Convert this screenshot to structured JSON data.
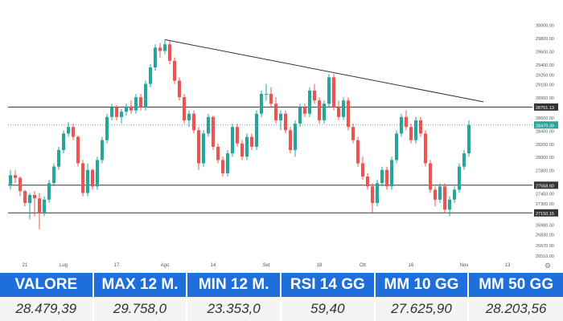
{
  "chart_data": {
    "type": "candlestick",
    "ylim": [
      26510,
      30200
    ],
    "y_ticks": [
      {
        "value": 30000,
        "label": "30000.00"
      },
      {
        "value": 29800,
        "label": "29800.00"
      },
      {
        "value": 29600,
        "label": "29600.00"
      },
      {
        "value": 29400,
        "label": "29400.00"
      },
      {
        "value": 29250,
        "label": "29250.00"
      },
      {
        "value": 29100,
        "label": "29100.00"
      },
      {
        "value": 28900,
        "label": "28900.00"
      },
      {
        "value": 28600,
        "label": "28600.00"
      },
      {
        "value": 28400,
        "label": "28400.00"
      },
      {
        "value": 28200,
        "label": "28200.00"
      },
      {
        "value": 28000,
        "label": "28000.00"
      },
      {
        "value": 27800,
        "label": "27800.00"
      },
      {
        "value": 27450,
        "label": "27450.00"
      },
      {
        "value": 27300,
        "label": "27300.00"
      },
      {
        "value": 26980,
        "label": "26980.00"
      },
      {
        "value": 26830,
        "label": "26830.00"
      },
      {
        "value": 26670,
        "label": "26670.00"
      },
      {
        "value": 26510,
        "label": "26510.00"
      }
    ],
    "x_ticks": [
      {
        "index": 3,
        "label": "21"
      },
      {
        "index": 11,
        "label": "Lug"
      },
      {
        "index": 22,
        "label": "17"
      },
      {
        "index": 32,
        "label": "Ago"
      },
      {
        "index": 42,
        "label": "14"
      },
      {
        "index": 53,
        "label": "Set"
      },
      {
        "index": 64,
        "label": "18"
      },
      {
        "index": 73,
        "label": "Ott"
      },
      {
        "index": 83,
        "label": "16"
      },
      {
        "index": 94,
        "label": "Nov"
      },
      {
        "index": 103,
        "label": "13"
      }
    ],
    "horizontal_levels": [
      {
        "value": 28751.13,
        "label": "28751.13",
        "color": "#333333"
      },
      {
        "value": 27568.6,
        "label": "27568.60",
        "color": "#333333"
      },
      {
        "value": 27150.15,
        "label": "27150.15",
        "color": "#333333"
      }
    ],
    "last_price": {
      "value": 28479.39,
      "label": "28479.39",
      "color": "#26a69a"
    },
    "trendline": {
      "start": {
        "index": 32,
        "value": 29770
      },
      "end": {
        "index": 98,
        "value": 28830
      }
    },
    "up_color": "#26a69a",
    "down_color": "#ef5350",
    "candles": [
      {
        "o": 27580,
        "h": 27800,
        "l": 27500,
        "c": 27720
      },
      {
        "o": 27720,
        "h": 27800,
        "l": 27600,
        "c": 27680
      },
      {
        "o": 27680,
        "h": 27700,
        "l": 27400,
        "c": 27480
      },
      {
        "o": 27480,
        "h": 27500,
        "l": 27250,
        "c": 27300
      },
      {
        "o": 27300,
        "h": 27450,
        "l": 27050,
        "c": 27420
      },
      {
        "o": 27420,
        "h": 27480,
        "l": 27100,
        "c": 27370
      },
      {
        "o": 27370,
        "h": 27450,
        "l": 26900,
        "c": 27150
      },
      {
        "o": 27150,
        "h": 27400,
        "l": 27100,
        "c": 27350
      },
      {
        "o": 27350,
        "h": 27650,
        "l": 27300,
        "c": 27600
      },
      {
        "o": 27600,
        "h": 27900,
        "l": 27550,
        "c": 27850
      },
      {
        "o": 27850,
        "h": 28150,
        "l": 27800,
        "c": 28100
      },
      {
        "o": 28100,
        "h": 28400,
        "l": 28050,
        "c": 28350
      },
      {
        "o": 28350,
        "h": 28520,
        "l": 28300,
        "c": 28450
      },
      {
        "o": 28450,
        "h": 28500,
        "l": 28250,
        "c": 28300
      },
      {
        "o": 28300,
        "h": 28320,
        "l": 27850,
        "c": 27900
      },
      {
        "o": 27900,
        "h": 27950,
        "l": 27400,
        "c": 27450
      },
      {
        "o": 27450,
        "h": 27900,
        "l": 27400,
        "c": 27800
      },
      {
        "o": 27800,
        "h": 27820,
        "l": 27500,
        "c": 27550
      },
      {
        "o": 27550,
        "h": 28000,
        "l": 27500,
        "c": 27950
      },
      {
        "o": 27950,
        "h": 28300,
        "l": 27900,
        "c": 28250
      },
      {
        "o": 28250,
        "h": 28650,
        "l": 28200,
        "c": 28600
      },
      {
        "o": 28600,
        "h": 28800,
        "l": 28550,
        "c": 28750
      },
      {
        "o": 28750,
        "h": 28780,
        "l": 28550,
        "c": 28600
      },
      {
        "o": 28600,
        "h": 28720,
        "l": 28500,
        "c": 28680
      },
      {
        "o": 28680,
        "h": 28800,
        "l": 28620,
        "c": 28760
      },
      {
        "o": 28760,
        "h": 28850,
        "l": 28650,
        "c": 28700
      },
      {
        "o": 28700,
        "h": 28950,
        "l": 28650,
        "c": 28900
      },
      {
        "o": 28900,
        "h": 28950,
        "l": 28700,
        "c": 28750
      },
      {
        "o": 28750,
        "h": 29150,
        "l": 28700,
        "c": 29100
      },
      {
        "o": 29100,
        "h": 29400,
        "l": 29050,
        "c": 29350
      },
      {
        "o": 29350,
        "h": 29700,
        "l": 29300,
        "c": 29650
      },
      {
        "o": 29650,
        "h": 29720,
        "l": 29500,
        "c": 29600
      },
      {
        "o": 29600,
        "h": 29770,
        "l": 29550,
        "c": 29700
      },
      {
        "o": 29700,
        "h": 29750,
        "l": 29400,
        "c": 29450
      },
      {
        "o": 29450,
        "h": 29500,
        "l": 29100,
        "c": 29150
      },
      {
        "o": 29150,
        "h": 29200,
        "l": 28850,
        "c": 28900
      },
      {
        "o": 28900,
        "h": 28950,
        "l": 28500,
        "c": 28550
      },
      {
        "o": 28550,
        "h": 28700,
        "l": 28450,
        "c": 28650
      },
      {
        "o": 28650,
        "h": 28700,
        "l": 28350,
        "c": 28400
      },
      {
        "o": 28400,
        "h": 28450,
        "l": 27800,
        "c": 27900
      },
      {
        "o": 27900,
        "h": 28400,
        "l": 27850,
        "c": 28350
      },
      {
        "o": 28350,
        "h": 28650,
        "l": 28300,
        "c": 28600
      },
      {
        "o": 28600,
        "h": 28620,
        "l": 28100,
        "c": 28150
      },
      {
        "o": 28150,
        "h": 28200,
        "l": 27900,
        "c": 27950
      },
      {
        "o": 27950,
        "h": 28000,
        "l": 27700,
        "c": 27750
      },
      {
        "o": 27750,
        "h": 28100,
        "l": 27700,
        "c": 28050
      },
      {
        "o": 28050,
        "h": 28500,
        "l": 28000,
        "c": 28450
      },
      {
        "o": 28450,
        "h": 28500,
        "l": 28150,
        "c": 28200
      },
      {
        "o": 28200,
        "h": 28250,
        "l": 27950,
        "c": 28000
      },
      {
        "o": 28000,
        "h": 28350,
        "l": 27950,
        "c": 28300
      },
      {
        "o": 28300,
        "h": 28350,
        "l": 28100,
        "c": 28150
      },
      {
        "o": 28150,
        "h": 28700,
        "l": 28100,
        "c": 28650
      },
      {
        "o": 28650,
        "h": 29000,
        "l": 28600,
        "c": 28950
      },
      {
        "o": 28950,
        "h": 29100,
        "l": 28850,
        "c": 28950
      },
      {
        "o": 28950,
        "h": 29050,
        "l": 28750,
        "c": 28800
      },
      {
        "o": 28800,
        "h": 28900,
        "l": 28500,
        "c": 28550
      },
      {
        "o": 28550,
        "h": 28700,
        "l": 28400,
        "c": 28650
      },
      {
        "o": 28650,
        "h": 28700,
        "l": 28350,
        "c": 28400
      },
      {
        "o": 28400,
        "h": 28450,
        "l": 28050,
        "c": 28100
      },
      {
        "o": 28100,
        "h": 28550,
        "l": 28000,
        "c": 28500
      },
      {
        "o": 28500,
        "h": 28800,
        "l": 28450,
        "c": 28750
      },
      {
        "o": 28750,
        "h": 28800,
        "l": 28600,
        "c": 28650
      },
      {
        "o": 28650,
        "h": 29050,
        "l": 28600,
        "c": 29000
      },
      {
        "o": 29000,
        "h": 29100,
        "l": 28800,
        "c": 28850
      },
      {
        "o": 28850,
        "h": 28900,
        "l": 28500,
        "c": 28550
      },
      {
        "o": 28550,
        "h": 28850,
        "l": 28500,
        "c": 28800
      },
      {
        "o": 28800,
        "h": 29250,
        "l": 28750,
        "c": 29200
      },
      {
        "o": 29200,
        "h": 29250,
        "l": 28700,
        "c": 28750
      },
      {
        "o": 28750,
        "h": 28850,
        "l": 28550,
        "c": 28600
      },
      {
        "o": 28600,
        "h": 28900,
        "l": 28550,
        "c": 28850
      },
      {
        "o": 28850,
        "h": 28900,
        "l": 28400,
        "c": 28450
      },
      {
        "o": 28450,
        "h": 28500,
        "l": 28200,
        "c": 28250
      },
      {
        "o": 28250,
        "h": 28300,
        "l": 27850,
        "c": 27900
      },
      {
        "o": 27900,
        "h": 28000,
        "l": 27650,
        "c": 27700
      },
      {
        "o": 27700,
        "h": 27750,
        "l": 27500,
        "c": 27550
      },
      {
        "o": 27550,
        "h": 27600,
        "l": 27150,
        "c": 27300
      },
      {
        "o": 27300,
        "h": 27650,
        "l": 27250,
        "c": 27600
      },
      {
        "o": 27600,
        "h": 27850,
        "l": 27550,
        "c": 27800
      },
      {
        "o": 27800,
        "h": 27850,
        "l": 27500,
        "c": 27550
      },
      {
        "o": 27550,
        "h": 28000,
        "l": 27500,
        "c": 27950
      },
      {
        "o": 27950,
        "h": 28400,
        "l": 27900,
        "c": 28350
      },
      {
        "o": 28350,
        "h": 28650,
        "l": 28300,
        "c": 28600
      },
      {
        "o": 28600,
        "h": 28700,
        "l": 28400,
        "c": 28450
      },
      {
        "o": 28450,
        "h": 28500,
        "l": 28200,
        "c": 28250
      },
      {
        "o": 28250,
        "h": 28600,
        "l": 28200,
        "c": 28550
      },
      {
        "o": 28550,
        "h": 28600,
        "l": 28300,
        "c": 28350
      },
      {
        "o": 28350,
        "h": 28400,
        "l": 27850,
        "c": 27900
      },
      {
        "o": 27900,
        "h": 27950,
        "l": 27450,
        "c": 27500
      },
      {
        "o": 27500,
        "h": 27550,
        "l": 27250,
        "c": 27350
      },
      {
        "o": 27350,
        "h": 27600,
        "l": 27300,
        "c": 27550
      },
      {
        "o": 27550,
        "h": 27600,
        "l": 27150,
        "c": 27200
      },
      {
        "o": 27200,
        "h": 27400,
        "l": 27100,
        "c": 27350
      },
      {
        "o": 27350,
        "h": 27550,
        "l": 27300,
        "c": 27500
      },
      {
        "o": 27500,
        "h": 27900,
        "l": 27450,
        "c": 27850
      },
      {
        "o": 27850,
        "h": 28100,
        "l": 27800,
        "c": 28050
      },
      {
        "o": 28050,
        "h": 28550,
        "l": 28000,
        "c": 28479.39
      }
    ]
  },
  "stats": [
    {
      "label": "VALORE",
      "value": "28.479,39"
    },
    {
      "label": "MAX 12 M.",
      "value": "29.758,0"
    },
    {
      "label": "MIN 12 M.",
      "value": "23.353,0"
    },
    {
      "label": "RSI 14 GG",
      "value": "59,40"
    },
    {
      "label": "MM 10 GG",
      "value": "27.625,90"
    },
    {
      "label": "MM 50 GG",
      "value": "28.203,56"
    }
  ]
}
